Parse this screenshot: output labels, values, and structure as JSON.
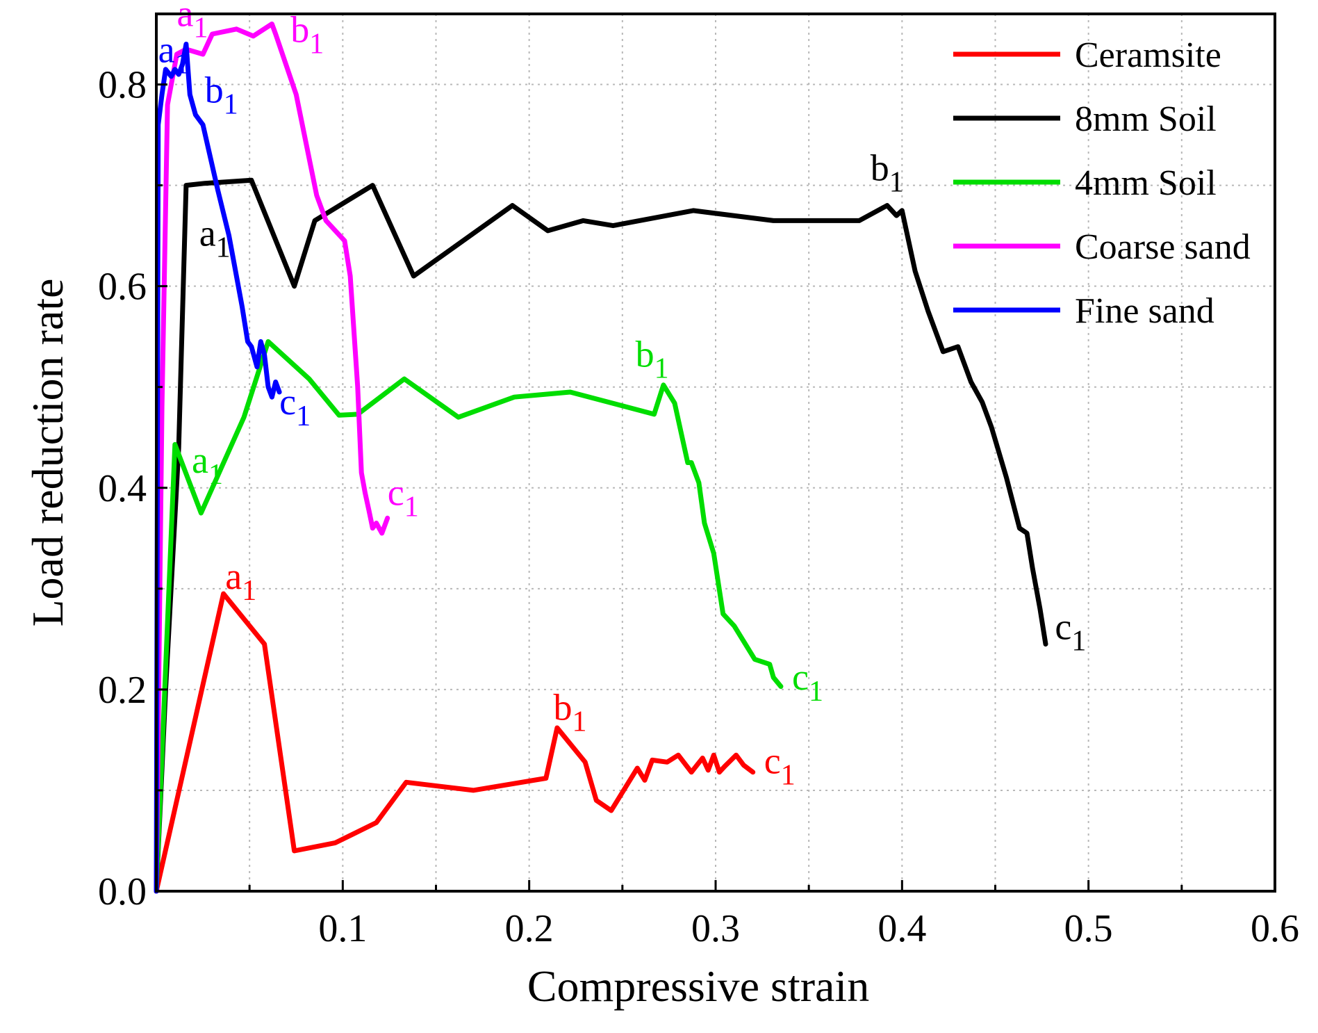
{
  "chart_data": {
    "type": "line",
    "title": "",
    "xlabel": "Compressive strain",
    "ylabel": "Load reduction rate",
    "xlim": [
      0,
      0.6
    ],
    "ylim": [
      0,
      0.87
    ],
    "xticks": [
      0.1,
      0.2,
      0.3,
      0.4,
      0.5,
      0.6
    ],
    "xtick_labels": [
      "0.1",
      "0.2",
      "0.3",
      "0.4",
      "0.5",
      "0.6"
    ],
    "yticks": [
      0.0,
      0.2,
      0.4,
      0.6,
      0.8
    ],
    "ytick_labels": [
      "0.0",
      "0.2",
      "0.4",
      "0.6",
      "0.8"
    ],
    "grid": true,
    "legend_position": "top-right",
    "series": [
      {
        "name": "Ceramsite",
        "color": "#ff0000",
        "x": [
          0,
          0.036,
          0.058,
          0.074,
          0.096,
          0.118,
          0.134,
          0.17,
          0.209,
          0.215,
          0.23,
          0.236,
          0.244,
          0.258,
          0.262,
          0.266,
          0.274,
          0.28,
          0.287,
          0.293,
          0.296,
          0.299,
          0.302,
          0.305,
          0.311,
          0.315,
          0.32
        ],
        "y": [
          0,
          0.295,
          0.245,
          0.04,
          0.048,
          0.068,
          0.108,
          0.1,
          0.112,
          0.162,
          0.128,
          0.09,
          0.08,
          0.122,
          0.11,
          0.13,
          0.128,
          0.135,
          0.118,
          0.132,
          0.12,
          0.135,
          0.118,
          0.124,
          0.135,
          0.125,
          0.118
        ],
        "labels": [
          {
            "text": "a",
            "sub": "1",
            "x": 0.037,
            "y": 0.3
          },
          {
            "text": "b",
            "sub": "1",
            "x": 0.213,
            "y": 0.17
          },
          {
            "text": "c",
            "sub": "1",
            "x": 0.326,
            "y": 0.117
          }
        ]
      },
      {
        "name": "8mm Soil",
        "color": "#000000",
        "x": [
          0,
          0.005,
          0.012,
          0.016,
          0.026,
          0.051,
          0.074,
          0.085,
          0.116,
          0.138,
          0.191,
          0.21,
          0.229,
          0.245,
          0.288,
          0.331,
          0.377,
          0.392,
          0.397,
          0.4,
          0.407,
          0.414,
          0.422,
          0.43,
          0.437,
          0.443,
          0.448,
          0.456,
          0.463,
          0.467,
          0.47,
          0.474,
          0.477
        ],
        "y": [
          0,
          0.2,
          0.44,
          0.7,
          0.702,
          0.705,
          0.6,
          0.665,
          0.7,
          0.61,
          0.68,
          0.655,
          0.665,
          0.66,
          0.675,
          0.665,
          0.665,
          0.68,
          0.67,
          0.675,
          0.615,
          0.575,
          0.535,
          0.54,
          0.505,
          0.485,
          0.46,
          0.41,
          0.36,
          0.355,
          0.32,
          0.28,
          0.245
        ],
        "labels": [
          {
            "text": "a",
            "sub": "1",
            "x": 0.023,
            "y": 0.64
          },
          {
            "text": "b",
            "sub": "1",
            "x": 0.383,
            "y": 0.705
          },
          {
            "text": "c",
            "sub": "1",
            "x": 0.482,
            "y": 0.25
          }
        ]
      },
      {
        "name": "4mm Soil",
        "color": "#00dd00",
        "x": [
          0,
          0.01,
          0.024,
          0.047,
          0.06,
          0.082,
          0.098,
          0.108,
          0.133,
          0.162,
          0.192,
          0.222,
          0.267,
          0.272,
          0.278,
          0.285,
          0.287,
          0.291,
          0.294,
          0.299,
          0.304,
          0.31,
          0.321,
          0.329,
          0.331,
          0.335
        ],
        "y": [
          0,
          0.443,
          0.375,
          0.47,
          0.545,
          0.508,
          0.472,
          0.473,
          0.508,
          0.47,
          0.49,
          0.495,
          0.473,
          0.502,
          0.484,
          0.425,
          0.425,
          0.405,
          0.365,
          0.335,
          0.275,
          0.263,
          0.23,
          0.225,
          0.212,
          0.203
        ],
        "labels": [
          {
            "text": "a",
            "sub": "1",
            "x": 0.019,
            "y": 0.415
          },
          {
            "text": "b",
            "sub": "1",
            "x": 0.257,
            "y": 0.52
          },
          {
            "text": "c",
            "sub": "1",
            "x": 0.341,
            "y": 0.2
          }
        ]
      },
      {
        "name": "Coarse sand",
        "color": "#ff00ff",
        "x": [
          0,
          0.003,
          0.006,
          0.011,
          0.016,
          0.025,
          0.03,
          0.043,
          0.052,
          0.062,
          0.064,
          0.075,
          0.086,
          0.091,
          0.101,
          0.104,
          0.108,
          0.11,
          0.112,
          0.114,
          0.116,
          0.118,
          0.121,
          0.124
        ],
        "y": [
          0,
          0.48,
          0.78,
          0.83,
          0.835,
          0.83,
          0.85,
          0.855,
          0.848,
          0.86,
          0.85,
          0.79,
          0.69,
          0.665,
          0.645,
          0.61,
          0.5,
          0.415,
          0.395,
          0.378,
          0.36,
          0.365,
          0.355,
          0.37
        ],
        "labels": [
          {
            "text": "a",
            "sub": "1",
            "x": 0.011,
            "y": 0.858
          },
          {
            "text": "b",
            "sub": "1",
            "x": 0.072,
            "y": 0.842
          },
          {
            "text": "c",
            "sub": "1",
            "x": 0.124,
            "y": 0.383
          }
        ]
      },
      {
        "name": "Fine sand",
        "color": "#0000ff",
        "x": [
          0,
          0.001,
          0.003,
          0.005,
          0.008,
          0.01,
          0.012,
          0.014,
          0.016,
          0.018,
          0.021,
          0.025,
          0.033,
          0.039,
          0.046,
          0.049,
          0.051,
          0.054,
          0.056,
          0.058,
          0.06,
          0.062,
          0.064,
          0.066
        ],
        "y": [
          0,
          0.76,
          0.79,
          0.815,
          0.808,
          0.815,
          0.81,
          0.82,
          0.84,
          0.79,
          0.77,
          0.76,
          0.695,
          0.65,
          0.58,
          0.545,
          0.54,
          0.52,
          0.545,
          0.532,
          0.5,
          0.49,
          0.505,
          0.495
        ],
        "labels": [
          {
            "text": "a",
            "sub": "1",
            "x": 0.001,
            "y": 0.822
          },
          {
            "text": "b",
            "sub": "1",
            "x": 0.026,
            "y": 0.782
          },
          {
            "text": "c",
            "sub": "1",
            "x": 0.066,
            "y": 0.473
          }
        ]
      }
    ]
  }
}
